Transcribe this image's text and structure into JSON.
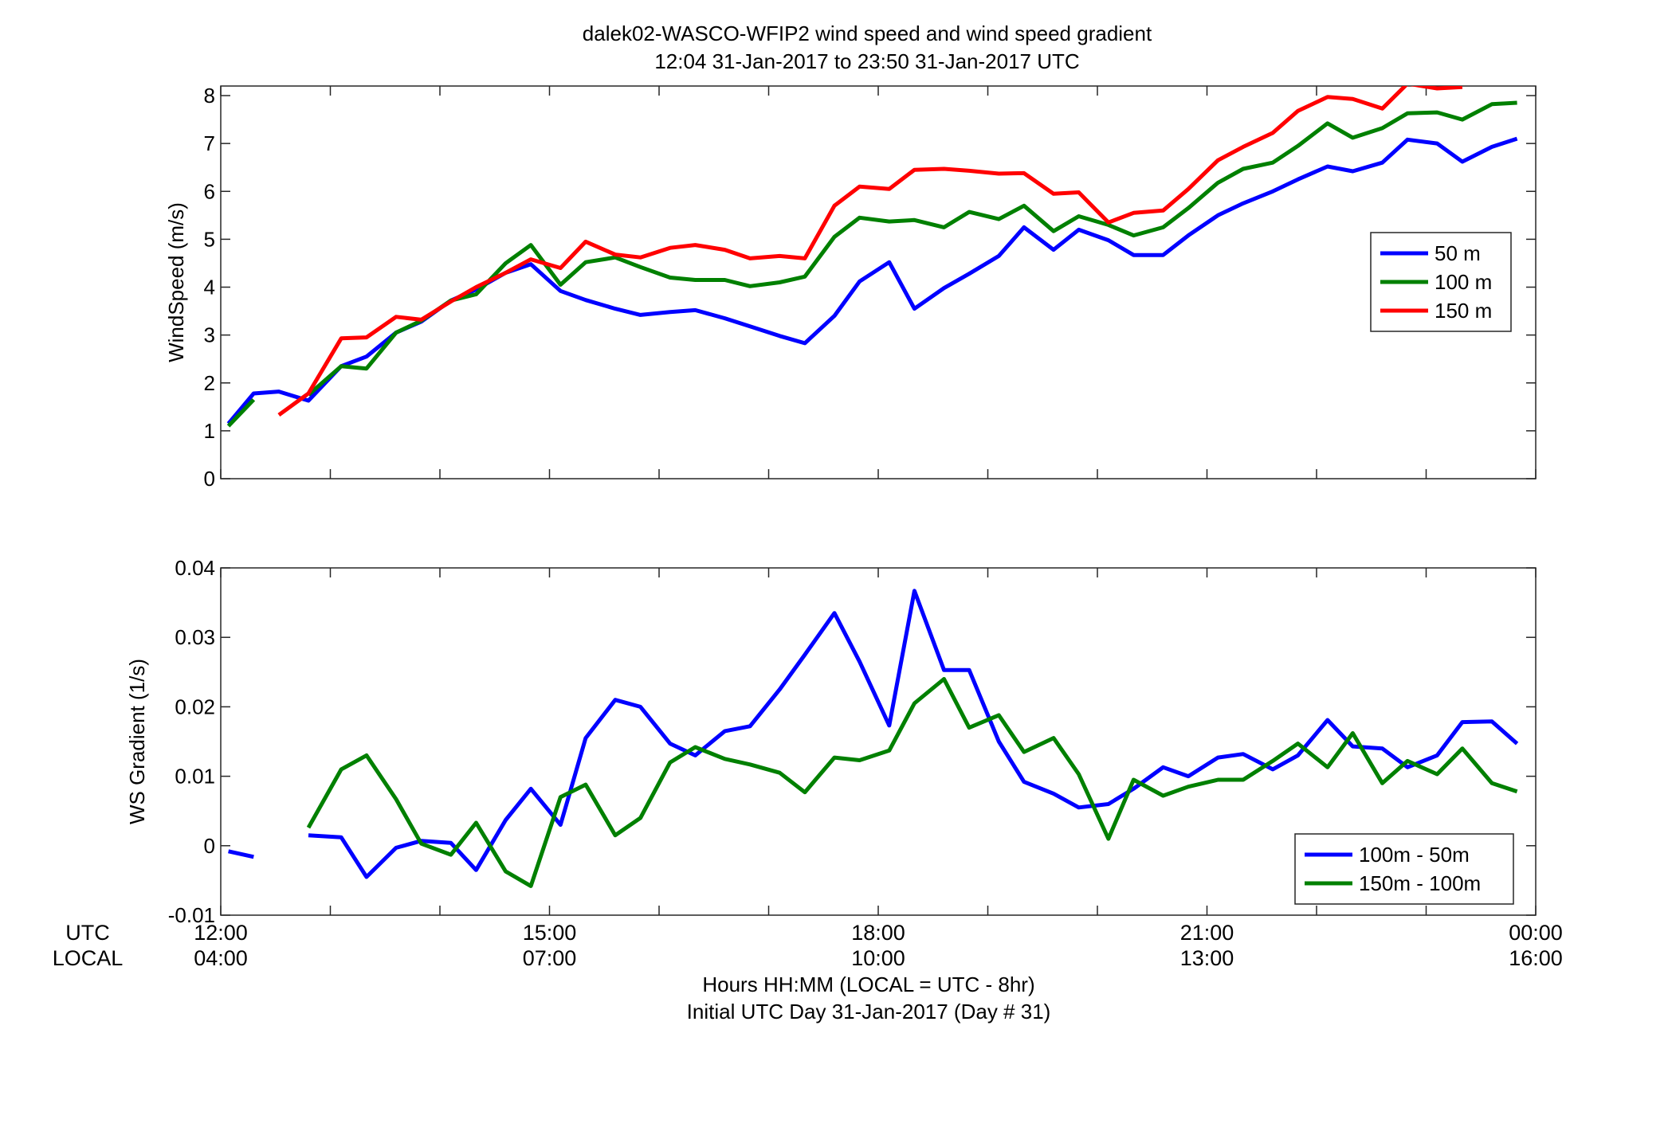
{
  "figure": {
    "title_line1": "dalek02-WASCO-WFIP2  wind speed and wind speed gradient",
    "title_line2": "12:04 31-Jan-2017 to 23:50 31-Jan-2017  UTC",
    "utc_label": "UTC",
    "local_label": "LOCAL",
    "xlabel_line1": "Hours HH:MM  (LOCAL = UTC - 8hr)",
    "xlabel_line2": "Initial UTC Day 31-Jan-2017 (Day # 31)",
    "xticks_utc": [
      "12:00",
      "15:00",
      "18:00",
      "21:00",
      "00:00"
    ],
    "xticks_local": [
      "04:00",
      "07:00",
      "10:00",
      "13:00",
      "16:00"
    ]
  },
  "chart_data": [
    {
      "type": "line",
      "title": "",
      "xlabel": "",
      "ylabel": "WindSpeed (m/s)",
      "xlim": [
        12.0,
        24.0
      ],
      "ylim": [
        0,
        8.2
      ],
      "yticks": [
        "0",
        "1",
        "2",
        "3",
        "4",
        "5",
        "6",
        "7",
        "8"
      ],
      "grid": false,
      "legend": "right",
      "series": [
        {
          "name": "50 m",
          "color": "#0000ff",
          "points": [
            [
              12.07,
              1.15
            ],
            [
              12.3,
              1.78
            ],
            [
              12.53,
              1.82
            ],
            [
              12.8,
              1.63
            ],
            [
              13.1,
              2.35
            ],
            [
              13.33,
              2.55
            ],
            [
              13.6,
              3.05
            ],
            [
              13.83,
              3.28
            ],
            [
              14.1,
              3.72
            ],
            [
              14.33,
              3.95
            ],
            [
              14.6,
              4.3
            ],
            [
              14.83,
              4.48
            ],
            [
              15.1,
              3.92
            ],
            [
              15.33,
              3.73
            ],
            [
              15.6,
              3.55
            ],
            [
              15.83,
              3.42
            ],
            [
              16.1,
              3.48
            ],
            [
              16.33,
              3.52
            ],
            [
              16.6,
              3.35
            ],
            [
              16.83,
              3.18
            ],
            [
              17.1,
              2.98
            ],
            [
              17.33,
              2.83
            ],
            [
              17.6,
              3.4
            ],
            [
              17.83,
              4.12
            ],
            [
              18.1,
              4.52
            ],
            [
              18.33,
              3.55
            ],
            [
              18.6,
              3.98
            ],
            [
              18.83,
              4.28
            ],
            [
              19.1,
              4.65
            ],
            [
              19.33,
              5.25
            ],
            [
              19.6,
              4.78
            ],
            [
              19.83,
              5.2
            ],
            [
              20.1,
              4.98
            ],
            [
              20.33,
              4.67
            ],
            [
              20.6,
              4.67
            ],
            [
              20.83,
              5.08
            ],
            [
              21.1,
              5.5
            ],
            [
              21.33,
              5.75
            ],
            [
              21.6,
              6.0
            ],
            [
              21.83,
              6.25
            ],
            [
              22.1,
              6.52
            ],
            [
              22.33,
              6.42
            ],
            [
              22.6,
              6.6
            ],
            [
              22.83,
              7.08
            ],
            [
              23.1,
              7.0
            ],
            [
              23.33,
              6.62
            ],
            [
              23.6,
              6.93
            ],
            [
              23.83,
              7.1
            ]
          ]
        },
        {
          "name": "100 m",
          "color": "#008000",
          "points": [
            [
              12.07,
              1.1
            ],
            [
              12.3,
              1.65
            ],
            [
              12.53,
              null
            ],
            [
              12.8,
              1.75
            ],
            [
              13.1,
              2.35
            ],
            [
              13.33,
              2.3
            ],
            [
              13.6,
              3.05
            ],
            [
              13.83,
              3.3
            ],
            [
              14.1,
              3.72
            ],
            [
              14.33,
              3.85
            ],
            [
              14.6,
              4.5
            ],
            [
              14.83,
              4.88
            ],
            [
              15.1,
              4.05
            ],
            [
              15.33,
              4.52
            ],
            [
              15.6,
              4.62
            ],
            [
              15.83,
              4.42
            ],
            [
              16.1,
              4.2
            ],
            [
              16.33,
              4.15
            ],
            [
              16.6,
              4.15
            ],
            [
              16.83,
              4.02
            ],
            [
              17.1,
              4.1
            ],
            [
              17.33,
              4.22
            ],
            [
              17.6,
              5.05
            ],
            [
              17.83,
              5.45
            ],
            [
              18.1,
              5.37
            ],
            [
              18.33,
              5.4
            ],
            [
              18.6,
              5.25
            ],
            [
              18.83,
              5.57
            ],
            [
              19.1,
              5.42
            ],
            [
              19.33,
              5.7
            ],
            [
              19.6,
              5.17
            ],
            [
              19.83,
              5.48
            ],
            [
              20.1,
              5.3
            ],
            [
              20.33,
              5.08
            ],
            [
              20.6,
              5.25
            ],
            [
              20.83,
              5.65
            ],
            [
              21.1,
              6.18
            ],
            [
              21.33,
              6.47
            ],
            [
              21.6,
              6.6
            ],
            [
              21.83,
              6.95
            ],
            [
              22.1,
              7.42
            ],
            [
              22.33,
              7.12
            ],
            [
              22.6,
              7.32
            ],
            [
              22.83,
              7.63
            ],
            [
              23.1,
              7.65
            ],
            [
              23.33,
              7.5
            ],
            [
              23.6,
              7.82
            ],
            [
              23.83,
              7.85
            ]
          ]
        },
        {
          "name": "150 m",
          "color": "#ff0000",
          "points": [
            [
              12.07,
              null
            ],
            [
              12.3,
              null
            ],
            [
              12.53,
              1.33
            ],
            [
              12.8,
              1.78
            ],
            [
              13.1,
              2.93
            ],
            [
              13.33,
              2.95
            ],
            [
              13.6,
              3.38
            ],
            [
              13.83,
              3.32
            ],
            [
              14.1,
              3.7
            ],
            [
              14.33,
              4.0
            ],
            [
              14.6,
              4.3
            ],
            [
              14.83,
              4.58
            ],
            [
              15.1,
              4.4
            ],
            [
              15.33,
              4.95
            ],
            [
              15.6,
              4.68
            ],
            [
              15.83,
              4.62
            ],
            [
              16.1,
              4.82
            ],
            [
              16.33,
              4.88
            ],
            [
              16.6,
              4.78
            ],
            [
              16.83,
              4.6
            ],
            [
              17.1,
              4.65
            ],
            [
              17.33,
              4.6
            ],
            [
              17.6,
              5.7
            ],
            [
              17.83,
              6.1
            ],
            [
              18.1,
              6.05
            ],
            [
              18.33,
              6.45
            ],
            [
              18.6,
              6.47
            ],
            [
              18.83,
              6.43
            ],
            [
              19.1,
              6.37
            ],
            [
              19.33,
              6.38
            ],
            [
              19.6,
              5.95
            ],
            [
              19.83,
              5.98
            ],
            [
              20.1,
              5.35
            ],
            [
              20.33,
              5.55
            ],
            [
              20.6,
              5.6
            ],
            [
              20.83,
              6.05
            ],
            [
              21.1,
              6.65
            ],
            [
              21.33,
              6.93
            ],
            [
              21.6,
              7.22
            ],
            [
              21.83,
              7.68
            ],
            [
              22.1,
              7.97
            ],
            [
              22.33,
              7.93
            ],
            [
              22.6,
              7.73
            ],
            [
              22.83,
              8.25
            ],
            [
              23.1,
              8.15
            ],
            [
              23.33,
              8.18
            ]
          ]
        }
      ]
    },
    {
      "type": "line",
      "title": "",
      "xlabel": "",
      "ylabel": "WS Gradient (1/s)",
      "xlim": [
        12.0,
        24.0
      ],
      "ylim": [
        -0.01,
        0.04
      ],
      "yticks": [
        "-0.01",
        "0",
        "0.01",
        "0.02",
        "0.03",
        "0.04"
      ],
      "grid": false,
      "legend": "bottom-right",
      "series": [
        {
          "name": "100m - 50m",
          "color": "#0000ff",
          "points": [
            [
              12.07,
              -0.0008
            ],
            [
              12.3,
              -0.0016
            ],
            [
              12.53,
              null
            ],
            [
              12.8,
              0.0015
            ],
            [
              13.1,
              0.0012
            ],
            [
              13.33,
              -0.0045
            ],
            [
              13.6,
              -0.0003
            ],
            [
              13.83,
              0.0007
            ],
            [
              14.1,
              0.0004
            ],
            [
              14.33,
              -0.0035
            ],
            [
              14.6,
              0.0037
            ],
            [
              14.83,
              0.0082
            ],
            [
              15.1,
              0.003
            ],
            [
              15.33,
              0.0155
            ],
            [
              15.6,
              0.021
            ],
            [
              15.83,
              0.02
            ],
            [
              16.1,
              0.0147
            ],
            [
              16.33,
              0.013
            ],
            [
              16.6,
              0.0165
            ],
            [
              16.83,
              0.0172
            ],
            [
              17.1,
              0.0225
            ],
            [
              17.33,
              0.0275
            ],
            [
              17.6,
              0.0335
            ],
            [
              17.83,
              0.0265
            ],
            [
              18.1,
              0.0173
            ],
            [
              18.33,
              0.0367
            ],
            [
              18.6,
              0.0253
            ],
            [
              18.83,
              0.0253
            ],
            [
              19.1,
              0.015
            ],
            [
              19.33,
              0.0092
            ],
            [
              19.6,
              0.0075
            ],
            [
              19.83,
              0.0055
            ],
            [
              20.1,
              0.006
            ],
            [
              20.33,
              0.0082
            ],
            [
              20.6,
              0.0113
            ],
            [
              20.83,
              0.01
            ],
            [
              21.1,
              0.0127
            ],
            [
              21.33,
              0.0132
            ],
            [
              21.6,
              0.011
            ],
            [
              21.83,
              0.013
            ],
            [
              22.1,
              0.0181
            ],
            [
              22.33,
              0.0143
            ],
            [
              22.6,
              0.014
            ],
            [
              22.83,
              0.0113
            ],
            [
              23.1,
              0.013
            ],
            [
              23.33,
              0.0178
            ],
            [
              23.6,
              0.0179
            ],
            [
              23.83,
              0.0147
            ]
          ]
        },
        {
          "name": "150m - 100m",
          "color": "#008000",
          "points": [
            [
              12.07,
              null
            ],
            [
              12.3,
              null
            ],
            [
              12.53,
              null
            ],
            [
              12.8,
              0.0026
            ],
            [
              13.1,
              0.011
            ],
            [
              13.33,
              0.013
            ],
            [
              13.6,
              0.0067
            ],
            [
              13.83,
              0.0003
            ],
            [
              14.1,
              -0.0013
            ],
            [
              14.33,
              0.0033
            ],
            [
              14.6,
              -0.0037
            ],
            [
              14.83,
              -0.0058
            ],
            [
              15.1,
              0.007
            ],
            [
              15.33,
              0.0088
            ],
            [
              15.6,
              0.0015
            ],
            [
              15.83,
              0.004
            ],
            [
              16.1,
              0.012
            ],
            [
              16.33,
              0.0142
            ],
            [
              16.6,
              0.0125
            ],
            [
              16.83,
              0.0117
            ],
            [
              17.1,
              0.0105
            ],
            [
              17.33,
              0.0077
            ],
            [
              17.6,
              0.0127
            ],
            [
              17.83,
              0.0123
            ],
            [
              18.1,
              0.0137
            ],
            [
              18.33,
              0.0205
            ],
            [
              18.6,
              0.024
            ],
            [
              18.83,
              0.017
            ],
            [
              19.1,
              0.0188
            ],
            [
              19.33,
              0.0135
            ],
            [
              19.6,
              0.0155
            ],
            [
              19.83,
              0.0103
            ],
            [
              20.1,
              0.001
            ],
            [
              20.33,
              0.0095
            ],
            [
              20.6,
              0.0072
            ],
            [
              20.83,
              0.0085
            ],
            [
              21.1,
              0.0095
            ],
            [
              21.33,
              0.0095
            ],
            [
              21.6,
              0.0122
            ],
            [
              21.83,
              0.0147
            ],
            [
              22.1,
              0.0113
            ],
            [
              22.33,
              0.0162
            ],
            [
              22.6,
              0.009
            ],
            [
              22.83,
              0.0122
            ],
            [
              23.1,
              0.0103
            ],
            [
              23.33,
              0.014
            ],
            [
              23.6,
              0.009
            ],
            [
              23.83,
              0.0078
            ]
          ]
        }
      ]
    }
  ]
}
